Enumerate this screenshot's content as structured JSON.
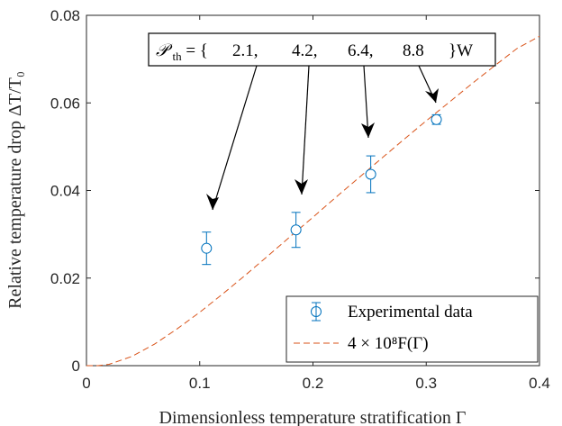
{
  "chart_data": {
    "type": "scatter",
    "xlabel": "Dimensionless temperature stratification Γ",
    "ylabel": "Relative temperature drop ΔT/T₀",
    "xlim": [
      0,
      0.4
    ],
    "ylim": [
      0,
      0.08
    ],
    "xticks": [
      0,
      0.1,
      0.2,
      0.3,
      0.4
    ],
    "xtick_labels": [
      "0",
      "0.1",
      "0.2",
      "0.3",
      "0.4"
    ],
    "yticks": [
      0,
      0.02,
      0.04,
      0.06,
      0.08
    ],
    "ytick_labels": [
      "0",
      "0.02",
      "0.04",
      "0.06",
      "0.08"
    ],
    "grid": false,
    "legend_position": "bottom-right",
    "series": [
      {
        "name": "Experimental data",
        "kind": "errorbar",
        "marker": "circle",
        "color": "#0072BD",
        "x": [
          0.106,
          0.185,
          0.251,
          0.309
        ],
        "y": [
          0.0268,
          0.031,
          0.0437,
          0.0562
        ],
        "err": [
          0.0037,
          0.004,
          0.0042,
          0.0011
        ]
      },
      {
        "name": "4 × 10⁸F(Γ)",
        "kind": "line",
        "dash": "dashed",
        "color": "#D95319",
        "x": [
          0,
          0.01,
          0.02,
          0.04,
          0.06,
          0.08,
          0.1,
          0.12,
          0.14,
          0.16,
          0.18,
          0.2,
          0.22,
          0.24,
          0.26,
          0.28,
          0.3,
          0.32,
          0.34,
          0.36,
          0.38,
          0.4
        ],
        "y": [
          0,
          0.0,
          0.0003,
          0.0021,
          0.0049,
          0.0084,
          0.0122,
          0.0163,
          0.0206,
          0.025,
          0.0295,
          0.0339,
          0.0384,
          0.0428,
          0.0472,
          0.0516,
          0.0559,
          0.0601,
          0.0643,
          0.0684,
          0.0724,
          0.0752
        ]
      }
    ],
    "annotation": {
      "prefix": "𝒫",
      "subscript": "th",
      "middle": " = {",
      "values": [
        "2.1,",
        "4.2,",
        "6.4,",
        "8.8"
      ],
      "suffix": "}W"
    }
  }
}
